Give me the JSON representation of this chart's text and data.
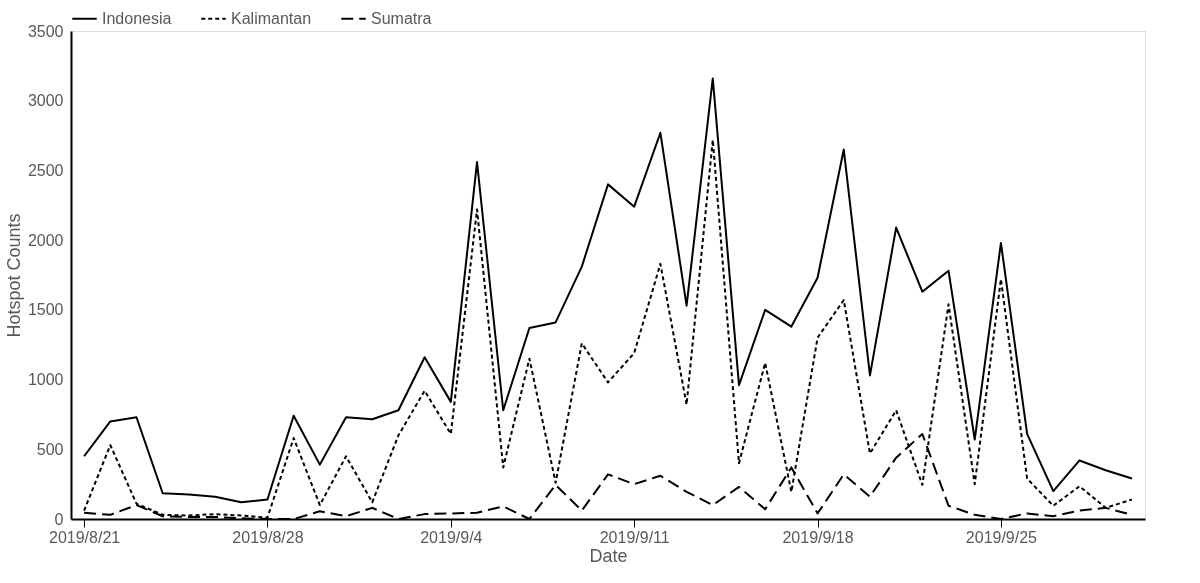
{
  "chart_data": {
    "type": "line",
    "xlabel": "Date",
    "ylabel": "Hotspot Counts",
    "x": [
      "2019-08-21",
      "2019-08-22",
      "2019-08-23",
      "2019-08-24",
      "2019-08-25",
      "2019-08-26",
      "2019-08-27",
      "2019-08-28",
      "2019-08-29",
      "2019-08-30",
      "2019-08-31",
      "2019-09-01",
      "2019-09-02",
      "2019-09-03",
      "2019-09-04",
      "2019-09-05",
      "2019-09-06",
      "2019-09-07",
      "2019-09-08",
      "2019-09-09",
      "2019-09-10",
      "2019-09-11",
      "2019-09-12",
      "2019-09-13",
      "2019-09-14",
      "2019-09-15",
      "2019-09-16",
      "2019-09-17",
      "2019-09-18",
      "2019-09-19",
      "2019-09-20",
      "2019-09-21",
      "2019-09-22",
      "2019-09-23",
      "2019-09-24",
      "2019-09-25",
      "2019-09-26",
      "2019-09-27",
      "2019-09-28",
      "2019-09-29",
      "2019-09-30"
    ],
    "series": [
      {
        "name": "Indonesia",
        "color": "#000000",
        "line_style": "solid",
        "values": [
          450,
          700,
          730,
          185,
          175,
          160,
          120,
          140,
          740,
          390,
          730,
          715,
          780,
          1160,
          840,
          2560,
          780,
          1370,
          1410,
          1810,
          2400,
          2240,
          2770,
          1530,
          3160,
          960,
          1500,
          1380,
          1730,
          2650,
          1030,
          2090,
          1630,
          1780,
          570,
          1980,
          610,
          200,
          420,
          350,
          290
        ]
      },
      {
        "name": "Kalimantan",
        "color": "#000000",
        "line_style": "dotted",
        "values": [
          60,
          530,
          110,
          30,
          25,
          35,
          25,
          10,
          580,
          100,
          450,
          120,
          600,
          920,
          610,
          2220,
          370,
          1150,
          260,
          1260,
          980,
          1190,
          1830,
          820,
          2720,
          400,
          1120,
          195,
          1300,
          1570,
          470,
          780,
          245,
          1540,
          250,
          1720,
          290,
          95,
          235,
          80,
          140
        ]
      },
      {
        "name": "Sumatra",
        "color": "#000000",
        "line_style": "dashed",
        "values": [
          45,
          30,
          100,
          20,
          15,
          15,
          5,
          0,
          0,
          55,
          20,
          80,
          0,
          35,
          40,
          45,
          90,
          0,
          245,
          60,
          320,
          250,
          310,
          195,
          100,
          230,
          70,
          370,
          40,
          320,
          160,
          440,
          610,
          95,
          30,
          0,
          40,
          20,
          60,
          80,
          30
        ]
      }
    ],
    "xlim": [
      "2019-08-20T12:00",
      "2019-09-30T12:00"
    ],
    "xticks": [
      {
        "value": "2019-08-21",
        "label": "2019/8/21"
      },
      {
        "value": "2019-08-28",
        "label": "2019/8/28"
      },
      {
        "value": "2019-09-04",
        "label": "2019/9/4"
      },
      {
        "value": "2019-09-11",
        "label": "2019/9/11"
      },
      {
        "value": "2019-09-18",
        "label": "2019/9/18"
      },
      {
        "value": "2019-09-25",
        "label": "2019/9/25"
      }
    ],
    "ylim": [
      0,
      3500
    ],
    "yticks": [
      0,
      500,
      1000,
      1500,
      2000,
      2500,
      3000,
      3500
    ],
    "grid": false,
    "legend": "top",
    "marker": "none"
  }
}
